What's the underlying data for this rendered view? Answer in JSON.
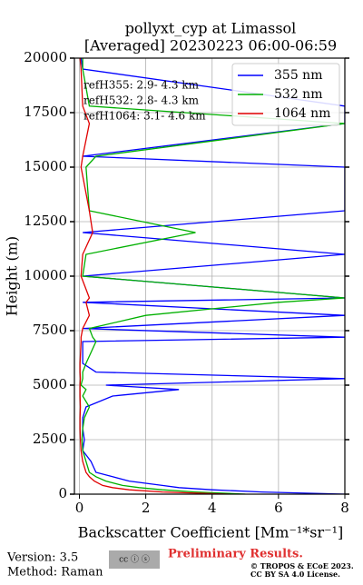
{
  "chart_data": {
    "type": "line",
    "title": "pollyxt_cyp at Limassol",
    "subtitle": "[Averaged] 20230223 06:00-06:59",
    "x_label": "Backscatter Coefficient [Mm⁻¹*sr⁻¹]",
    "y_label": "Height (m)",
    "y": [
      0,
      100,
      200,
      300,
      400,
      600,
      800,
      1000,
      1500,
      2000,
      2500,
      3000,
      3500,
      4000,
      4500,
      4800,
      5000,
      5300,
      5600,
      6000,
      7000,
      7200,
      7600,
      8200,
      8800,
      9000,
      10000,
      11000,
      12000,
      13000,
      15000,
      15500,
      17000,
      17800,
      19500,
      20000
    ],
    "series": [
      {
        "name": "355 nm",
        "color": "#0000ff",
        "values": [
          8,
          5.5,
          4,
          3,
          2.5,
          1.5,
          1,
          0.5,
          0.35,
          0.1,
          0.15,
          0.1,
          0.1,
          0.2,
          1,
          3,
          0.8,
          8,
          0.5,
          0.1,
          0.1,
          8,
          0.1,
          8,
          0.1,
          8,
          0.1,
          8,
          0.1,
          8,
          8,
          0.1,
          8,
          8,
          0.1,
          0.05
        ]
      },
      {
        "name": "532 nm",
        "color": "#00b000",
        "values": [
          5,
          3.5,
          2.5,
          1.8,
          1.3,
          0.8,
          0.5,
          0.3,
          0.2,
          0.1,
          0.08,
          0.1,
          0.15,
          0.3,
          0.1,
          0.2,
          0.05,
          0.1,
          0.1,
          0.2,
          0.5,
          0.4,
          0.3,
          2,
          6,
          8,
          0.1,
          0.2,
          3.5,
          0.3,
          0.2,
          0.5,
          8,
          0.3,
          0.1,
          0.1
        ]
      },
      {
        "name": "1064 nm",
        "color": "#e00000",
        "values": [
          4.5,
          2.5,
          1.5,
          1,
          0.7,
          0.45,
          0.3,
          0.2,
          0.1,
          0.05,
          0.03,
          0.02,
          0.02,
          0.03,
          0.02,
          0.02,
          0.02,
          0.03,
          0.02,
          0.02,
          0.05,
          0.05,
          0.1,
          0.3,
          0.2,
          0.3,
          0.05,
          0.1,
          0.4,
          0.3,
          0.05,
          0.1,
          0.3,
          0.1,
          0.05,
          0.02
        ]
      }
    ],
    "annotations": [
      "refH355:  2.9- 4.3 km",
      "refH532:  2.8- 4.3 km",
      "refH1064:  3.1- 4.6 km"
    ],
    "xlim": [
      -0.15,
      8
    ],
    "xticks": [
      0,
      2,
      4,
      6,
      8
    ],
    "ylim": [
      0,
      20000
    ],
    "yticks": [
      0,
      2500,
      5000,
      7500,
      10000,
      12500,
      15000,
      17500,
      20000
    ],
    "grid": true,
    "legend": "upper-right",
    "footer": {
      "version": "Version: 3.5",
      "method": "Method: Raman",
      "notice": "Preliminary Results.",
      "license": "© TROPOS & ECoE 2023.",
      "license2": "CC BY SA 4.0 License."
    }
  }
}
